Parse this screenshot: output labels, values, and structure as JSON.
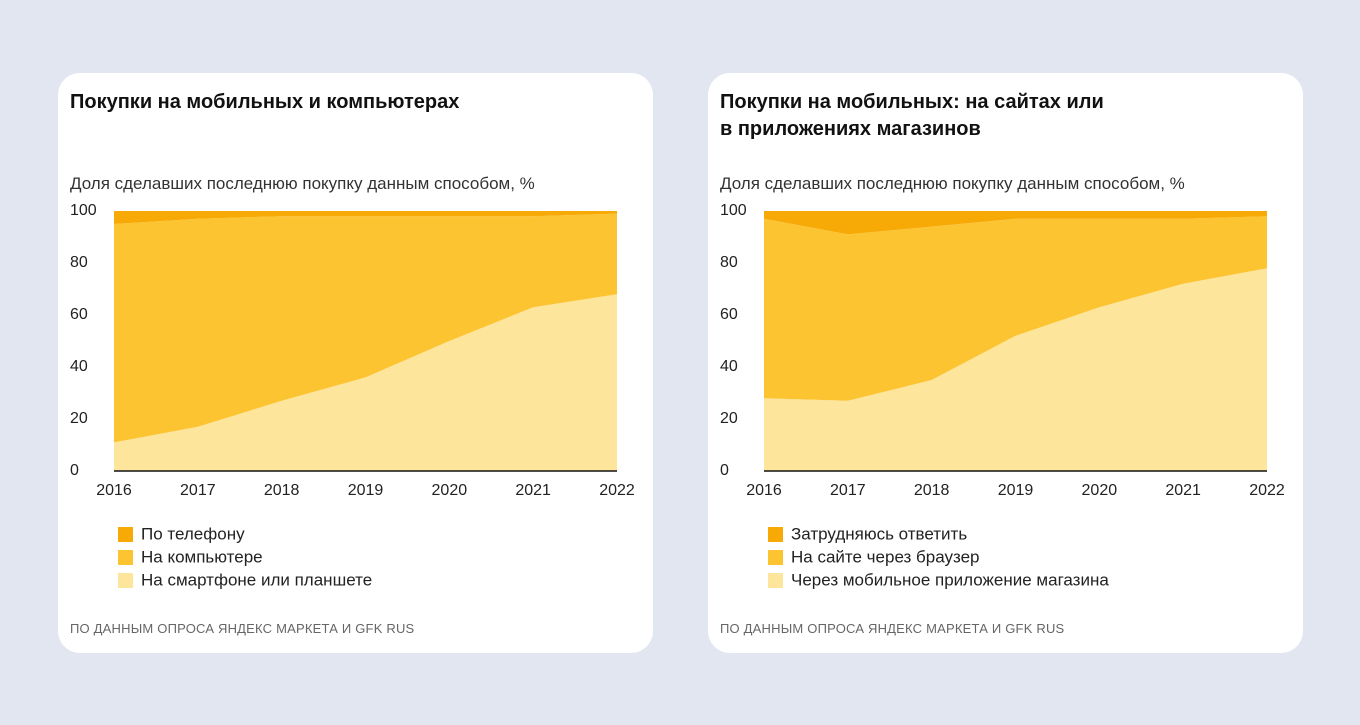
{
  "chart_data": [
    {
      "type": "area",
      "title": "Покупки на мобильных и компьютерах",
      "subtitle": "Доля сделавших последнюю покупку данным способом, %",
      "categories": [
        "2016",
        "2017",
        "2018",
        "2019",
        "2020",
        "2021",
        "2022"
      ],
      "series": [
        {
          "name": "По телефону",
          "color": "#f7aa05",
          "values": [
            5,
            3,
            2,
            2,
            2,
            2,
            1
          ]
        },
        {
          "name": "На компьютере",
          "color": "#fdc432",
          "values": [
            84,
            80,
            71,
            62,
            48,
            35,
            31
          ]
        },
        {
          "name": "На смартфоне или планшете",
          "color": "#fee59c",
          "values": [
            11,
            17,
            27,
            36,
            50,
            63,
            68
          ]
        }
      ],
      "ylim": [
        0,
        100
      ],
      "yticks": [
        0,
        20,
        40,
        60,
        80,
        100
      ],
      "source": "ПО ДАННЫМ ОПРОСА ЯНДЕКС МАРКЕТА И GFK RUS"
    },
    {
      "type": "area",
      "title": "Покупки на мобильных: на сайтах или\nв приложениях магазинов",
      "subtitle": "Доля сделавших последнюю покупку данным способом, %",
      "categories": [
        "2016",
        "2017",
        "2018",
        "2019",
        "2020",
        "2021",
        "2022"
      ],
      "series": [
        {
          "name": "Затрудняюсь ответить",
          "color": "#f7aa05",
          "values": [
            3,
            9,
            6,
            3,
            3,
            3,
            2
          ]
        },
        {
          "name": "На сайте через браузер",
          "color": "#fdc432",
          "values": [
            69,
            64,
            59,
            45,
            34,
            25,
            20
          ]
        },
        {
          "name": "Через мобильное приложение магазина",
          "color": "#fee59c",
          "values": [
            28,
            27,
            35,
            52,
            63,
            72,
            78
          ]
        }
      ],
      "ylim": [
        0,
        100
      ],
      "yticks": [
        0,
        20,
        40,
        60,
        80,
        100
      ],
      "source": "ПО ДАННЫМ ОПРОСА ЯНДЕКС МАРКЕТА И GFK RUS"
    }
  ]
}
